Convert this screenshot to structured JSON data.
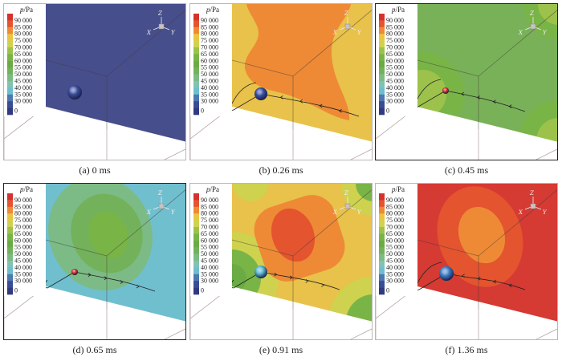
{
  "figure": {
    "colorbar": {
      "title": "p/Pa",
      "ticks": [
        "90 000",
        "85 000",
        "80 000",
        "75 000",
        "70 000",
        "65 000",
        "60 000",
        "55 000",
        "50 000",
        "45 000",
        "40 000",
        "35 000",
        "30 000",
        "0"
      ],
      "colors": [
        "#d7312c",
        "#e4542f",
        "#ee8a35",
        "#e9c63d",
        "#cfd24f",
        "#9dc24c",
        "#79b447",
        "#6aab44",
        "#73b25a",
        "#7cbb86",
        "#80c2b4",
        "#6bbfcf",
        "#4d78b0",
        "#3a4c94",
        "#2f3a80"
      ]
    },
    "axis_triad": {
      "z": "Z",
      "x": "X",
      "y": "Y"
    },
    "panels": [
      {
        "id": "a",
        "caption": "(a) 0 ms",
        "plane_color": "#474e8c",
        "bubble_color": "#3c4f9c",
        "bubble_r": 9
      },
      {
        "id": "b",
        "caption": "(b) 0.26 ms",
        "plane_color": "#e8c24a",
        "bubble_color": "#3a4fa0",
        "bubble_r": 8
      },
      {
        "id": "c",
        "caption": "(c) 0.45 ms",
        "plane_color": "#79b158",
        "bubble_color": "#d8312b",
        "bubble_r": 4
      },
      {
        "id": "d",
        "caption": "(d) 0.65 ms",
        "plane_color": "#70bfcf",
        "bubble_color": "#d8312b",
        "bubble_r": 4
      },
      {
        "id": "e",
        "caption": "(e) 0.91 ms",
        "plane_color": "#e8c24a",
        "bubble_color": "#5ab6cf",
        "bubble_r": 8
      },
      {
        "id": "f",
        "caption": "(f) 1.36 ms",
        "plane_color": "#d53a33",
        "bubble_color": "#3f80c8",
        "bubble_r": 9
      }
    ]
  }
}
